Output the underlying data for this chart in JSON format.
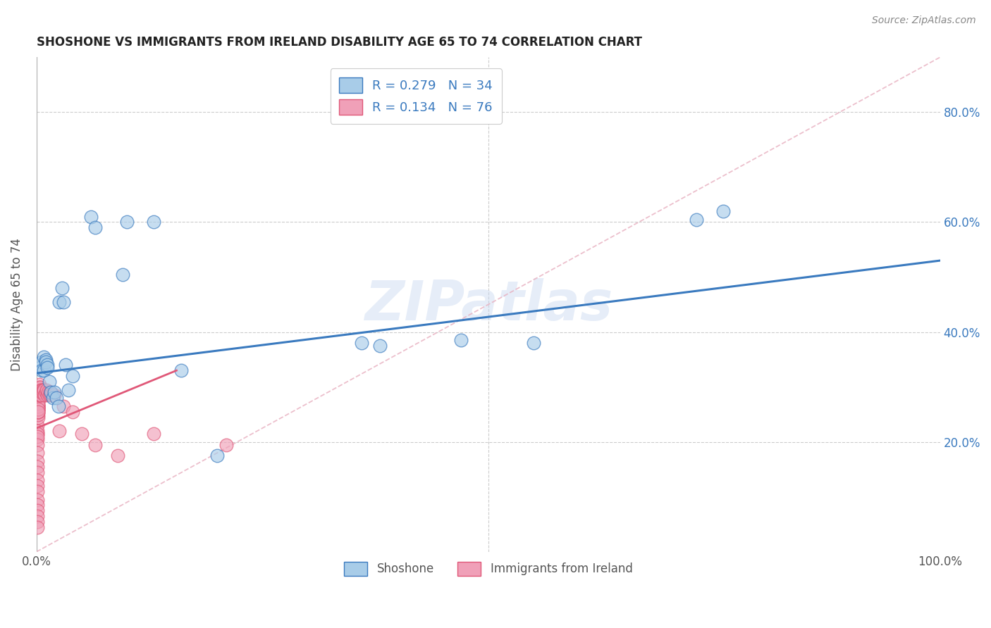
{
  "title": "SHOSHONE VS IMMIGRANTS FROM IRELAND DISABILITY AGE 65 TO 74 CORRELATION CHART",
  "source": "Source: ZipAtlas.com",
  "ylabel": "Disability Age 65 to 74",
  "ytick_vals": [
    0.2,
    0.4,
    0.6,
    0.8
  ],
  "xlim": [
    0.0,
    1.0
  ],
  "ylim": [
    0.0,
    0.9
  ],
  "watermark": "ZIPatlas",
  "legend_label1": "Shoshone",
  "legend_label2": "Immigrants from Ireland",
  "R1": 0.279,
  "N1": 34,
  "R2": 0.134,
  "N2": 76,
  "color1": "#a8cce8",
  "color2": "#f0a0b8",
  "line1_color": "#3a7abf",
  "line2_color": "#e05878",
  "dashed_color": "#e8b0c0",
  "shoshone_x": [
    0.004,
    0.006,
    0.006,
    0.008,
    0.008,
    0.01,
    0.01,
    0.012,
    0.012,
    0.014,
    0.016,
    0.018,
    0.02,
    0.022,
    0.024,
    0.025,
    0.028,
    0.03,
    0.032,
    0.035,
    0.04,
    0.06,
    0.065,
    0.095,
    0.1,
    0.13,
    0.16,
    0.2,
    0.36,
    0.38,
    0.47,
    0.55,
    0.73,
    0.76
  ],
  "shoshone_y": [
    0.335,
    0.345,
    0.33,
    0.355,
    0.33,
    0.35,
    0.345,
    0.34,
    0.335,
    0.31,
    0.29,
    0.28,
    0.29,
    0.28,
    0.265,
    0.455,
    0.48,
    0.455,
    0.34,
    0.295,
    0.32,
    0.61,
    0.59,
    0.505,
    0.6,
    0.6,
    0.33,
    0.175,
    0.38,
    0.375,
    0.385,
    0.38,
    0.605,
    0.62
  ],
  "ireland_x": [
    0.001,
    0.001,
    0.001,
    0.001,
    0.001,
    0.001,
    0.001,
    0.001,
    0.001,
    0.001,
    0.001,
    0.001,
    0.001,
    0.001,
    0.001,
    0.001,
    0.001,
    0.001,
    0.001,
    0.001,
    0.002,
    0.002,
    0.002,
    0.002,
    0.002,
    0.002,
    0.002,
    0.002,
    0.002,
    0.002,
    0.002,
    0.002,
    0.002,
    0.002,
    0.002,
    0.002,
    0.002,
    0.003,
    0.003,
    0.003,
    0.003,
    0.003,
    0.003,
    0.003,
    0.003,
    0.004,
    0.004,
    0.004,
    0.004,
    0.004,
    0.005,
    0.005,
    0.005,
    0.006,
    0.006,
    0.007,
    0.007,
    0.008,
    0.009,
    0.01,
    0.011,
    0.012,
    0.013,
    0.014,
    0.015,
    0.016,
    0.018,
    0.02,
    0.025,
    0.03,
    0.04,
    0.05,
    0.065,
    0.09,
    0.13,
    0.21
  ],
  "ireland_y": [
    0.215,
    0.23,
    0.22,
    0.215,
    0.205,
    0.21,
    0.195,
    0.18,
    0.165,
    0.155,
    0.145,
    0.13,
    0.12,
    0.11,
    0.095,
    0.085,
    0.075,
    0.065,
    0.055,
    0.045,
    0.245,
    0.25,
    0.255,
    0.26,
    0.26,
    0.27,
    0.265,
    0.275,
    0.265,
    0.275,
    0.265,
    0.255,
    0.26,
    0.265,
    0.27,
    0.26,
    0.255,
    0.285,
    0.285,
    0.295,
    0.29,
    0.3,
    0.295,
    0.3,
    0.305,
    0.29,
    0.295,
    0.3,
    0.285,
    0.29,
    0.295,
    0.29,
    0.285,
    0.295,
    0.29,
    0.295,
    0.29,
    0.295,
    0.285,
    0.29,
    0.295,
    0.285,
    0.29,
    0.285,
    0.29,
    0.285,
    0.285,
    0.285,
    0.22,
    0.265,
    0.255,
    0.215,
    0.195,
    0.175,
    0.215,
    0.195
  ],
  "blue_line_x0": 0.0,
  "blue_line_y0": 0.325,
  "blue_line_x1": 1.0,
  "blue_line_y1": 0.53,
  "pink_line_x0": 0.0,
  "pink_line_y0": 0.225,
  "pink_line_x1": 0.155,
  "pink_line_y1": 0.33
}
